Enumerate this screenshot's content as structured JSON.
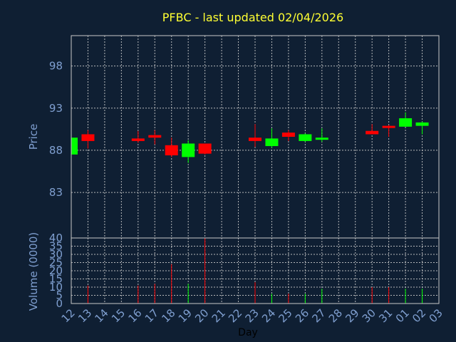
{
  "chart_data": {
    "type": "candlestick",
    "title": "PFBC - last updated 02/04/2026",
    "xlabel": "Day",
    "price_panel": {
      "ylabel": "Price",
      "yticks": [
        83,
        88,
        93,
        98
      ],
      "ylim": [
        77.6,
        101.6
      ],
      "grid": true
    },
    "volume_panel": {
      "ylabel": "Volume (0000)",
      "yticks": [
        0,
        5,
        10,
        15,
        20,
        25,
        30,
        35,
        40
      ],
      "ylim": [
        0,
        40
      ],
      "grid": true
    },
    "x_tick_labels": [
      "12",
      "13",
      "14",
      "15",
      "16",
      "17",
      "18",
      "19",
      "20",
      "21",
      "22",
      "23",
      "24",
      "25",
      "26",
      "27",
      "28",
      "29",
      "30",
      "31",
      "01",
      "02",
      "03"
    ],
    "up_color": "#00ff00",
    "down_color": "#ff0000",
    "candles": [
      {
        "day": "12",
        "open": 87.5,
        "high": 89.5,
        "low": 87.5,
        "close": 89.5,
        "volume": 0
      },
      {
        "day": "13",
        "open": 89.9,
        "high": 90.4,
        "low": 88.2,
        "close": 89.1,
        "volume": 11
      },
      {
        "day": "16",
        "open": 89.4,
        "high": 90.3,
        "low": 88.9,
        "close": 89.1,
        "volume": 11
      },
      {
        "day": "17",
        "open": 89.8,
        "high": 90.4,
        "low": 88.7,
        "close": 89.5,
        "volume": 12
      },
      {
        "day": "18",
        "open": 88.6,
        "high": 89.5,
        "low": 87.2,
        "close": 87.4,
        "volume": 24
      },
      {
        "day": "19",
        "open": 87.2,
        "high": 89.2,
        "low": 86.5,
        "close": 88.8,
        "volume": 12
      },
      {
        "day": "20",
        "open": 88.8,
        "high": 88.8,
        "low": 87.5,
        "close": 87.6,
        "volume": 40
      },
      {
        "day": "23",
        "open": 89.5,
        "high": 91.1,
        "low": 88.4,
        "close": 89.1,
        "volume": 13
      },
      {
        "day": "24",
        "open": 88.5,
        "high": 90.6,
        "low": 88.3,
        "close": 89.4,
        "volume": 6
      },
      {
        "day": "25",
        "open": 90.1,
        "high": 90.4,
        "low": 89.1,
        "close": 89.6,
        "volume": 6
      },
      {
        "day": "26",
        "open": 89.1,
        "high": 90.0,
        "low": 89.0,
        "close": 89.9,
        "volume": 6
      },
      {
        "day": "27",
        "open": 89.4,
        "high": 90.6,
        "low": 89.0,
        "close": 89.5,
        "volume": 9
      },
      {
        "day": "30",
        "open": 90.3,
        "high": 91.1,
        "low": 89.9,
        "close": 89.9,
        "volume": 10
      },
      {
        "day": "31",
        "open": 90.9,
        "high": 91.0,
        "low": 89.6,
        "close": 90.7,
        "volume": 10
      },
      {
        "day": "01",
        "open": 90.8,
        "high": 92.5,
        "low": 90.8,
        "close": 91.8,
        "volume": 9
      },
      {
        "day": "02",
        "open": 90.9,
        "high": 91.4,
        "low": 89.9,
        "close": 91.3,
        "volume": 9
      }
    ]
  }
}
